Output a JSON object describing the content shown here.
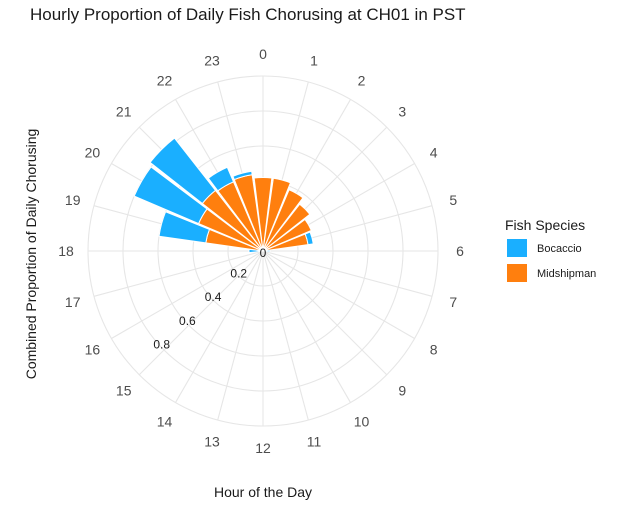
{
  "chart_data": {
    "type": "bar",
    "coord": "polar",
    "stacked": true,
    "title": "Hourly Proportion of Daily Fish Chorusing at CH01 in PST",
    "xlabel": "Hour of the Day",
    "ylabel": "Combined Proportion of Daily Chorusing",
    "categories": [
      "0",
      "1",
      "2",
      "3",
      "4",
      "5",
      "6",
      "7",
      "8",
      "9",
      "10",
      "11",
      "12",
      "13",
      "14",
      "15",
      "16",
      "17",
      "18",
      "19",
      "20",
      "21",
      "22",
      "23"
    ],
    "radial_ticks": [
      "0",
      "0.2",
      "0.4",
      "0.6",
      "0.8"
    ],
    "radial_tick_values": [
      0,
      0.2,
      0.4,
      0.6,
      0.8
    ],
    "rlim": [
      0,
      1.0
    ],
    "grid": true,
    "legend": {
      "title": "Fish Species",
      "position": "right"
    },
    "series": [
      {
        "name": "Midshipman",
        "color": "#FF7F0E",
        "values": [
          0.42,
          0.42,
          0.38,
          0.34,
          0.3,
          0.26,
          0.0,
          0.0,
          0.0,
          0.0,
          0.0,
          0.0,
          0.0,
          0.0,
          0.0,
          0.0,
          0.0,
          0.0,
          0.0,
          0.33,
          0.4,
          0.44,
          0.43,
          0.44
        ]
      },
      {
        "name": "Bocaccio",
        "color": "#1AAFFF",
        "values": [
          0.0,
          0.0,
          0.0,
          0.0,
          0.0,
          0.03,
          0.04,
          0.0,
          0.0,
          0.0,
          0.0,
          0.0,
          0.0,
          0.0,
          0.0,
          0.0,
          0.0,
          0.0,
          0.08,
          0.27,
          0.4,
          0.38,
          0.09,
          0.02
        ]
      }
    ]
  }
}
